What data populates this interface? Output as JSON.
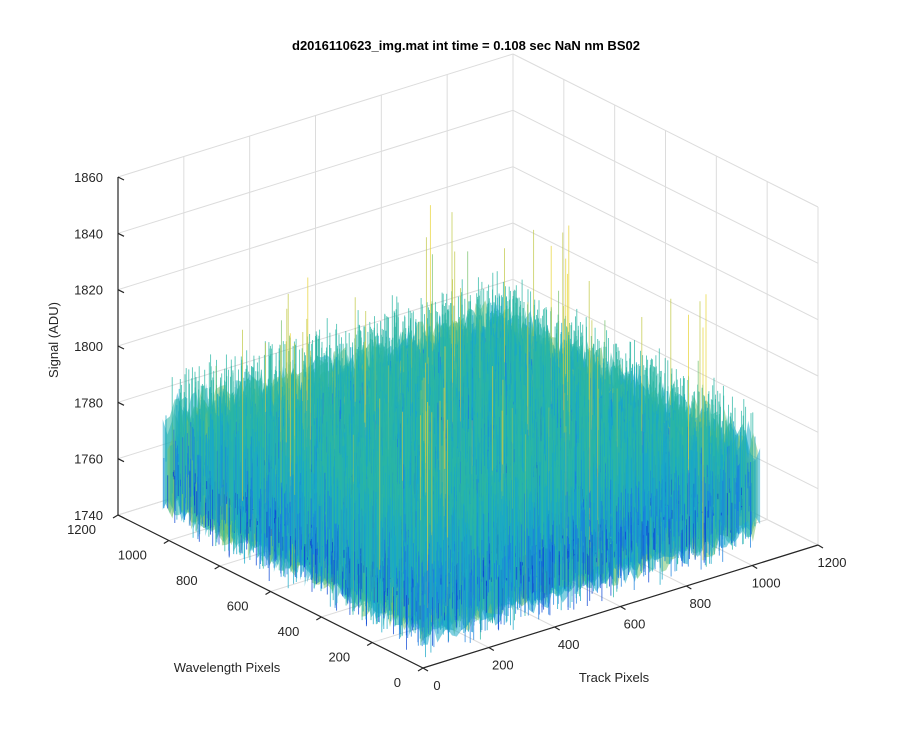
{
  "chart_data": {
    "type": "surface",
    "title": "d2016110623_img.mat int time = 0.108 sec  NaN nm BS02",
    "xlabel": "Track Pixels",
    "ylabel": "Wavelength Pixels",
    "zlabel": "Signal (ADU)",
    "xlim": [
      0,
      1200
    ],
    "ylim": [
      0,
      1200
    ],
    "zlim": [
      1740,
      1860
    ],
    "x_ticks": [
      "0",
      "200",
      "400",
      "600",
      "800",
      "1000",
      "1200"
    ],
    "y_ticks": [
      "0",
      "200",
      "400",
      "600",
      "800",
      "1000",
      "1200"
    ],
    "z_ticks": [
      "1740",
      "1760",
      "1780",
      "1800",
      "1820",
      "1840",
      "1860"
    ],
    "data_extent": {
      "x": [
        0,
        1024
      ],
      "y": [
        0,
        1024
      ]
    },
    "signal_mean": 1780,
    "signal_min": 1755,
    "signal_max": 1845,
    "colormap": [
      "#0d47d6",
      "#1a7fe0",
      "#19a9c8",
      "#2ab7a4",
      "#7ac36f",
      "#c2c94a",
      "#e8d43a"
    ],
    "grid": true
  }
}
